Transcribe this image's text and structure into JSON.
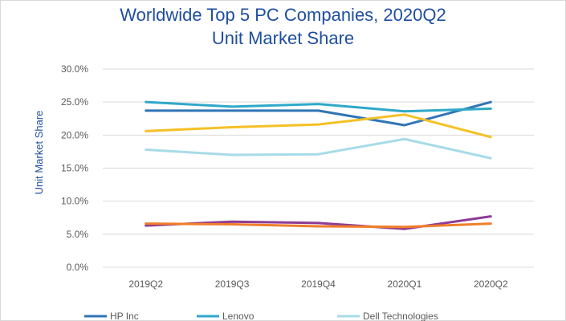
{
  "chart_data": {
    "type": "line",
    "title_line1": "Worldwide Top 5 PC Companies, 2020Q2",
    "title_line2": "Unit Market Share",
    "xlabel": "",
    "ylabel": "Unit Market Share",
    "ylim": [
      0,
      30
    ],
    "y_ticks": [
      "0.0%",
      "5.0%",
      "10.0%",
      "15.0%",
      "20.0%",
      "25.0%",
      "30.0%"
    ],
    "categories": [
      "2019Q2",
      "2019Q3",
      "2019Q4",
      "2020Q1",
      "2020Q2"
    ],
    "grid": true,
    "legend_position": "bottom",
    "series": [
      {
        "name": "HP Inc",
        "color": "#2f75b5",
        "values": [
          23.7,
          23.7,
          23.7,
          21.5,
          25.0
        ]
      },
      {
        "name": "Lenovo",
        "color": "#2fa8c8",
        "values": [
          25.0,
          24.3,
          24.7,
          23.6,
          24.0
        ]
      },
      {
        "name": "Dell Technologies",
        "color": "#a7dbe8",
        "values": [
          17.8,
          17.0,
          17.1,
          19.4,
          16.5
        ]
      },
      {
        "color": "#f5c025",
        "values": [
          20.6,
          21.2,
          21.6,
          23.1,
          19.7
        ]
      },
      {
        "color": "#8e3b96",
        "values": [
          6.3,
          6.9,
          6.7,
          5.8,
          7.7
        ]
      },
      {
        "color": "#f07e2a",
        "values": [
          6.6,
          6.5,
          6.2,
          6.1,
          6.6
        ]
      }
    ]
  }
}
